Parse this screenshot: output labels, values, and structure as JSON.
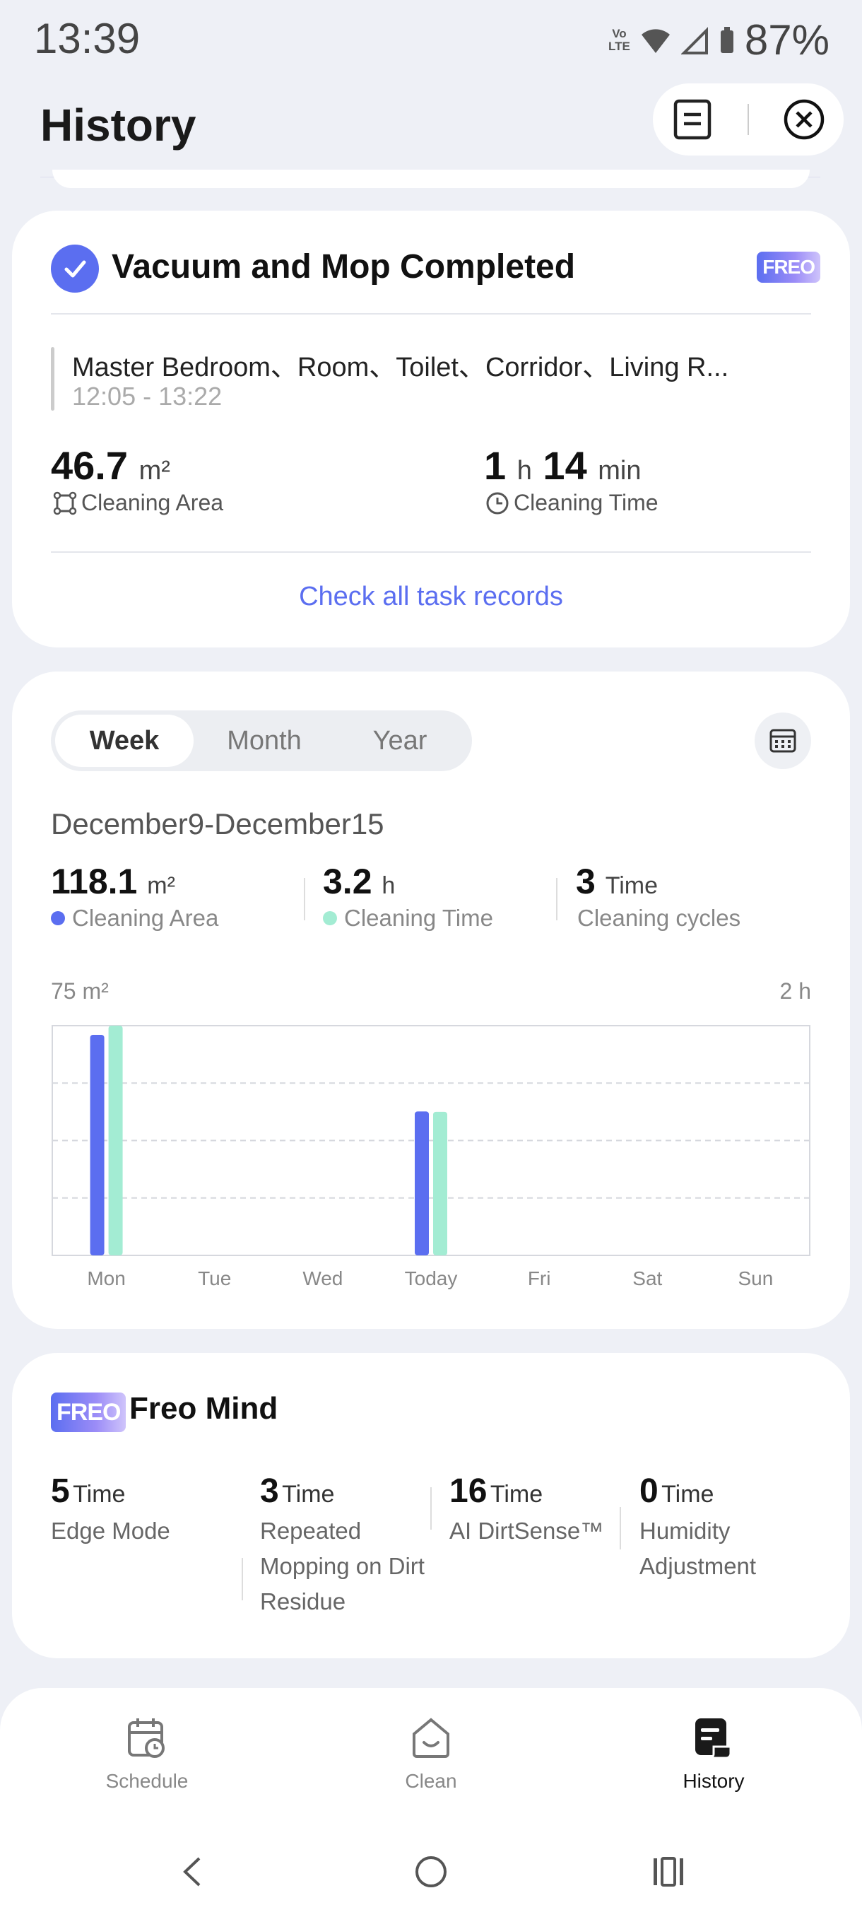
{
  "status_bar": {
    "time": "13:39",
    "network": "Vo LTE",
    "battery": "87%"
  },
  "header": {
    "title": "History"
  },
  "last_task": {
    "title": "Vacuum and Mop Completed",
    "badge": "FREO",
    "rooms": "Master Bedroom、Room、Toilet、Corridor、Living R...",
    "time_range": "12:05 - 13:22",
    "area_value": "46.7",
    "area_unit": "m²",
    "area_label": "Cleaning Area",
    "time_hours": "1",
    "time_hours_unit": "h",
    "time_minutes": "14",
    "time_minutes_unit": "min",
    "time_label": "Cleaning Time",
    "link": "Check all task records"
  },
  "stats": {
    "tabs": [
      "Week",
      "Month",
      "Year"
    ],
    "active_tab": "Week",
    "date_range": "December9-December15",
    "area_value": "118.1",
    "area_unit": "m²",
    "area_label": "Cleaning Area",
    "time_value": "3.2",
    "time_unit": "h",
    "time_label": "Cleaning Time",
    "cycles_value": "3",
    "cycles_unit": "Time",
    "cycles_label": "Cleaning cycles",
    "area_color": "#5b6ef0",
    "time_color": "#a3ecd3"
  },
  "chart_data": {
    "type": "bar",
    "categories": [
      "Mon",
      "Tue",
      "Wed",
      "Today",
      "Fri",
      "Sat",
      "Sun"
    ],
    "y_left_max_label": "75 m²",
    "y_right_max_label": "2 h",
    "ylim_left": [
      0,
      75
    ],
    "ylim_right": [
      0,
      2
    ],
    "grid": true,
    "series": [
      {
        "name": "Cleaning Area",
        "axis": "left",
        "color": "#5b6ef0",
        "values": [
          72,
          0,
          0,
          47,
          0,
          0,
          0
        ]
      },
      {
        "name": "Cleaning Time",
        "axis": "right",
        "color": "#a3ecd3",
        "values": [
          2.0,
          0,
          0,
          1.25,
          0,
          0,
          0
        ]
      }
    ]
  },
  "freo_mind": {
    "badge": "FREO",
    "title": "Freo Mind",
    "items": [
      {
        "value": "5",
        "unit": "Time",
        "label": "Edge Mode"
      },
      {
        "value": "3",
        "unit": "Time",
        "label": "Repeated Mopping on Dirt Residue"
      },
      {
        "value": "16",
        "unit": "Time",
        "label": "AI DirtSense™"
      },
      {
        "value": "0",
        "unit": "Time",
        "label": "Humidity Adjustment"
      }
    ]
  },
  "bottom_nav": {
    "items": [
      {
        "label": "Schedule",
        "icon": "calendar-clock-icon"
      },
      {
        "label": "Clean",
        "icon": "home-smile-icon"
      },
      {
        "label": "History",
        "icon": "history-doc-icon"
      }
    ],
    "active": "History"
  }
}
